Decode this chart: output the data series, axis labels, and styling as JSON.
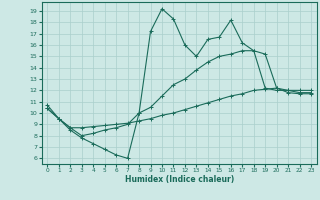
{
  "xlabel": "Humidex (Indice chaleur)",
  "background_color": "#cde8e5",
  "grid_color": "#aacfcc",
  "line_color": "#1a6b5a",
  "xlim": [
    -0.5,
    23.5
  ],
  "ylim": [
    5.5,
    19.8
  ],
  "yticks": [
    6,
    7,
    8,
    9,
    10,
    11,
    12,
    13,
    14,
    15,
    16,
    17,
    18,
    19
  ],
  "xticks": [
    0,
    1,
    2,
    3,
    4,
    5,
    6,
    7,
    8,
    9,
    10,
    11,
    12,
    13,
    14,
    15,
    16,
    17,
    18,
    19,
    20,
    21,
    22,
    23
  ],
  "line1_x": [
    0,
    1,
    2,
    3,
    4,
    5,
    6,
    7,
    8,
    9,
    10,
    11,
    12,
    13,
    14,
    15,
    16,
    17,
    18,
    19,
    20,
    21,
    22,
    23
  ],
  "line1_y": [
    10.7,
    9.5,
    8.5,
    7.8,
    7.3,
    6.8,
    6.3,
    6.0,
    10.0,
    17.2,
    19.2,
    18.3,
    16.0,
    15.0,
    16.5,
    16.7,
    18.2,
    16.2,
    15.5,
    12.2,
    12.0,
    12.0,
    12.0,
    12.0
  ],
  "line2_x": [
    0,
    1,
    2,
    3,
    4,
    5,
    6,
    7,
    8,
    9,
    10,
    11,
    12,
    13,
    14,
    15,
    16,
    17,
    18,
    19,
    20,
    21,
    22,
    23
  ],
  "line2_y": [
    10.4,
    9.5,
    8.7,
    8.7,
    8.8,
    8.9,
    9.0,
    9.1,
    9.3,
    9.5,
    9.8,
    10.0,
    10.3,
    10.6,
    10.9,
    11.2,
    11.5,
    11.7,
    12.0,
    12.1,
    12.2,
    11.8,
    11.7,
    11.7
  ],
  "line3_x": [
    0,
    1,
    2,
    3,
    4,
    5,
    6,
    7,
    8,
    9,
    10,
    11,
    12,
    13,
    14,
    15,
    16,
    17,
    18,
    19,
    20,
    21,
    22,
    23
  ],
  "line3_y": [
    10.4,
    9.5,
    8.7,
    8.0,
    8.2,
    8.5,
    8.7,
    9.0,
    10.0,
    10.5,
    11.5,
    12.5,
    13.0,
    13.8,
    14.5,
    15.0,
    15.2,
    15.5,
    15.5,
    15.2,
    12.2,
    12.0,
    11.8,
    11.8
  ]
}
